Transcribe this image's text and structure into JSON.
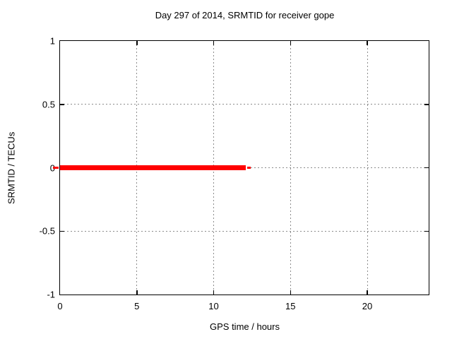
{
  "figure": {
    "background": "#ffffff"
  },
  "chart_data": {
    "type": "line",
    "title": "Day 297 of 2014, SRMTID for receiver gope",
    "xlabel": "GPS time / hours",
    "ylabel": "SRMTID / TECUs",
    "xlim": [
      0,
      24
    ],
    "ylim": [
      -1,
      1
    ],
    "xticks": [
      0,
      5,
      10,
      15,
      20
    ],
    "xtick_labels": [
      "0",
      "5",
      "10",
      "15",
      "20"
    ],
    "yticks": [
      -1,
      -0.5,
      0,
      0.5,
      1
    ],
    "ytick_labels": [
      "-1",
      "-0.5",
      "0",
      "0.5",
      "1"
    ],
    "grid": true,
    "grid_color": "#8c8c8c",
    "border_color": "#000000",
    "text_color": "#000000",
    "legend": "none",
    "series": [
      {
        "name": "SRMTID",
        "color": "#ff0000",
        "style": "line",
        "value": 0,
        "segments": [
          {
            "x_start": -0.46,
            "x_end": -0.1,
            "y": 0,
            "thickness_px": 3
          },
          {
            "x_start": 0,
            "x_end": 12.07,
            "y": 0,
            "thickness_px": 7
          },
          {
            "x_start": 12.2,
            "x_end": 12.4,
            "y": 0,
            "thickness_px": 3
          }
        ]
      }
    ]
  }
}
